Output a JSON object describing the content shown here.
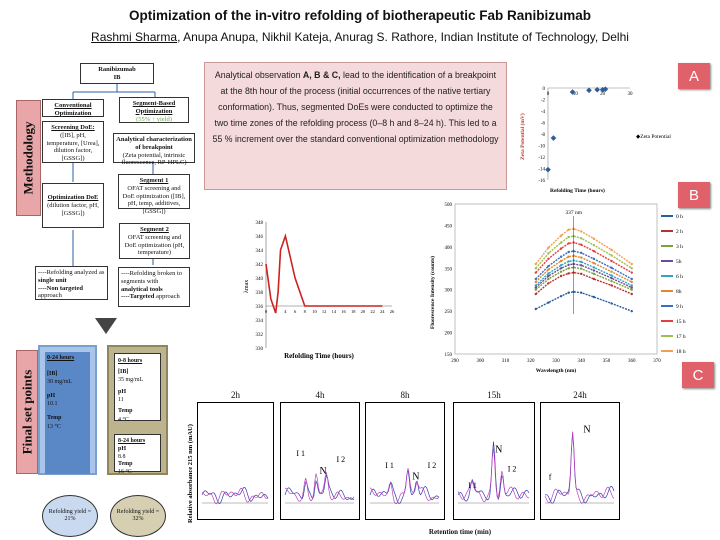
{
  "header": {
    "title": "Optimization of the in-vitro refolding of biotherapeutic Fab Ranibizumab",
    "presenter": "Rashmi Sharma",
    "authors_rest": ", Anupa Anupa, Nikhil Kateja, Anurag S. Rathore, Indian Institute of Technology, Delhi"
  },
  "methodology": {
    "side_label": "Methodology",
    "root": {
      "line1": "Ranibizumab",
      "line2": "IB"
    },
    "conventional": {
      "heading": "Conventional Optimization",
      "screening_head": "Screening DoE:",
      "screening_body": "([IB], pH, temperature, [Urea], dilution factor, [GSSG])",
      "opt_head": "Optimization DoE",
      "opt_body": "(dilution factor, pH, [GSSG])",
      "note1": "----Refolding analyzed as ",
      "note1_bold": "single unit",
      "note2_bold": "----Non targeted",
      "note2": " approach"
    },
    "segment": {
      "heading": "Segment-Based Optimization",
      "yield_note": "(55% ↑ yield)",
      "analytical_head": "Analytical characterization of breakpoint",
      "analytical_body": "(Zeta potential, intrinsic fluorescence, RP-HPLC)",
      "seg1_head": "Segment 1",
      "seg1_body": "OFAT screening and DoE optimization ([IB], pH, temp, additives, [GSSG])",
      "seg2_head": "Segment 2",
      "seg2_body": "OFAT screening and DoE optimization (pH, temperature)",
      "note1": "----Refolding broken to segments with ",
      "note1_bold": "analytical tools",
      "note2_bold": "----Targeted",
      "note2": " approach"
    }
  },
  "final": {
    "side_label": "Final set points",
    "left": {
      "period": "0-24 hours",
      "ib_label": "[IB]",
      "ib_val": "30 mg/mL",
      "ph_label": "pH",
      "ph_val": "10.1",
      "temp_label": "Temp",
      "temp_val": "13 °C",
      "yield": "Refolding yield = 21%"
    },
    "right": {
      "period1": "0-8 hours",
      "ib_label": "[IB]",
      "ib_val": "35 mg/mL",
      "ph_label": "pH",
      "ph_val": "11",
      "temp_label": "Temp",
      "temp_val": "4 °C",
      "period2": "8-24 hours",
      "ph2_label": "pH",
      "ph2_val": "8.8",
      "temp2_label": "Temp",
      "temp2_val": "16 °C",
      "yield": "Refolding yield = 32%"
    }
  },
  "summary": {
    "p1": "Analytical observation ",
    "p1_bold": "A, B & C,",
    "p2": " lead to the identification of a breakpoint at the 8th hour of the process (initial occurrences of the native tertiary conformation). Thus, segmented DoEs were conducted to optimize the two time zones of the refolding process (0–8 h and 8–24 h). This led to a 55 % increment over the standard conventional optimization methodology"
  },
  "tags": {
    "a": "A",
    "b": "B",
    "c": "C"
  },
  "chart_data": [
    {
      "type": "scatter",
      "id": "zeta",
      "ylabel": "Zeta Potential (mV)",
      "xlabel": "Refolding Time (hours)",
      "xlim": [
        0,
        30
      ],
      "ylim": [
        -16,
        0
      ],
      "xticks": [
        0,
        10,
        20,
        30
      ],
      "yticks": [
        0,
        -2,
        -4,
        -6,
        -8,
        -10,
        -12,
        -14,
        -16
      ],
      "legend": "Zeta Potential",
      "color": "#2f5c9a",
      "x": [
        0,
        2,
        9,
        15,
        18,
        20,
        21
      ],
      "y": [
        -14.2,
        -8.7,
        -0.7,
        -0.4,
        -0.3,
        -0.3,
        -0.2
      ]
    },
    {
      "type": "line",
      "id": "lambda",
      "ylabel": "λmax",
      "xlabel": "Refolding Time (hours)",
      "xlim": [
        0,
        26
      ],
      "ylim": [
        330,
        348
      ],
      "xticks": [
        0,
        2,
        4,
        6,
        8,
        10,
        12,
        14,
        16,
        18,
        20,
        22,
        24,
        26
      ],
      "yticks": [
        330,
        332,
        334,
        336,
        338,
        340,
        342,
        344,
        346,
        348
      ],
      "color": "#cc2222",
      "x": [
        0,
        1,
        2,
        2.5,
        3,
        4,
        5,
        6,
        7,
        8,
        9,
        10,
        12,
        24
      ],
      "y": [
        342,
        337,
        335,
        338,
        344,
        346,
        343,
        340,
        338,
        336,
        336,
        336,
        336,
        336
      ]
    },
    {
      "type": "line",
      "id": "fluorescence",
      "ylabel": "Fluorescence Intensity (counts)",
      "xlabel": "Wavelength (nm)",
      "annotation": "337 nm",
      "xlim": [
        290,
        370
      ],
      "ylim": [
        150,
        500
      ],
      "xticks": [
        290,
        300,
        310,
        320,
        330,
        340,
        350,
        360,
        370
      ],
      "yticks": [
        150,
        200,
        250,
        300,
        350,
        400,
        450,
        500
      ],
      "series": [
        {
          "name": "0 h",
          "color": "#2b5f9e",
          "values": [
            255,
            270,
            285,
            293,
            295,
            293,
            283,
            268,
            250
          ]
        },
        {
          "name": "2 h",
          "color": "#b83230",
          "values": [
            290,
            315,
            332,
            338,
            340,
            337,
            325,
            310,
            290
          ]
        },
        {
          "name": "3 h",
          "color": "#77a33a",
          "values": [
            300,
            325,
            342,
            350,
            352,
            349,
            337,
            320,
            300
          ]
        },
        {
          "name": "5h",
          "color": "#6b4b9c",
          "values": [
            305,
            332,
            350,
            358,
            360,
            357,
            345,
            327,
            305
          ]
        },
        {
          "name": "6 h",
          "color": "#2fa5c2",
          "values": [
            310,
            338,
            357,
            366,
            368,
            365,
            352,
            333,
            310
          ]
        },
        {
          "name": "8h",
          "color": "#e5862d",
          "values": [
            318,
            347,
            367,
            377,
            379,
            375,
            362,
            342,
            318
          ]
        },
        {
          "name": "9 h",
          "color": "#3a6fbf",
          "values": [
            325,
            355,
            377,
            388,
            390,
            386,
            372,
            351,
            325
          ]
        },
        {
          "name": "15 h",
          "color": "#e04040",
          "values": [
            340,
            372,
            396,
            408,
            410,
            405,
            390,
            367,
            340
          ]
        },
        {
          "name": "17 h",
          "color": "#9ac24e",
          "values": [
            350,
            385,
            410,
            423,
            425,
            420,
            404,
            380,
            350
          ]
        },
        {
          "name": "18 h",
          "color": "#f0a050",
          "values": [
            360,
            398,
            426,
            440,
            442,
            436,
            419,
            393,
            360
          ]
        }
      ],
      "x": [
        322,
        327,
        332,
        335,
        337,
        340,
        345,
        352,
        360
      ]
    }
  ],
  "hplc": {
    "ylabel": "Relative absorbance 215 nm (mAU)",
    "xlabel": "Retention time (min)",
    "panels": [
      {
        "title": "2h",
        "labels": []
      },
      {
        "title": "4h",
        "labels": [
          "I 1",
          "N",
          "I 2"
        ]
      },
      {
        "title": "8h",
        "labels": [
          "I 1",
          "N",
          "I 2"
        ]
      },
      {
        "title": "15h",
        "labels": [
          "I 1",
          "N",
          "I 2"
        ]
      },
      {
        "title": "24h",
        "labels": [
          "N",
          "f"
        ]
      }
    ]
  }
}
